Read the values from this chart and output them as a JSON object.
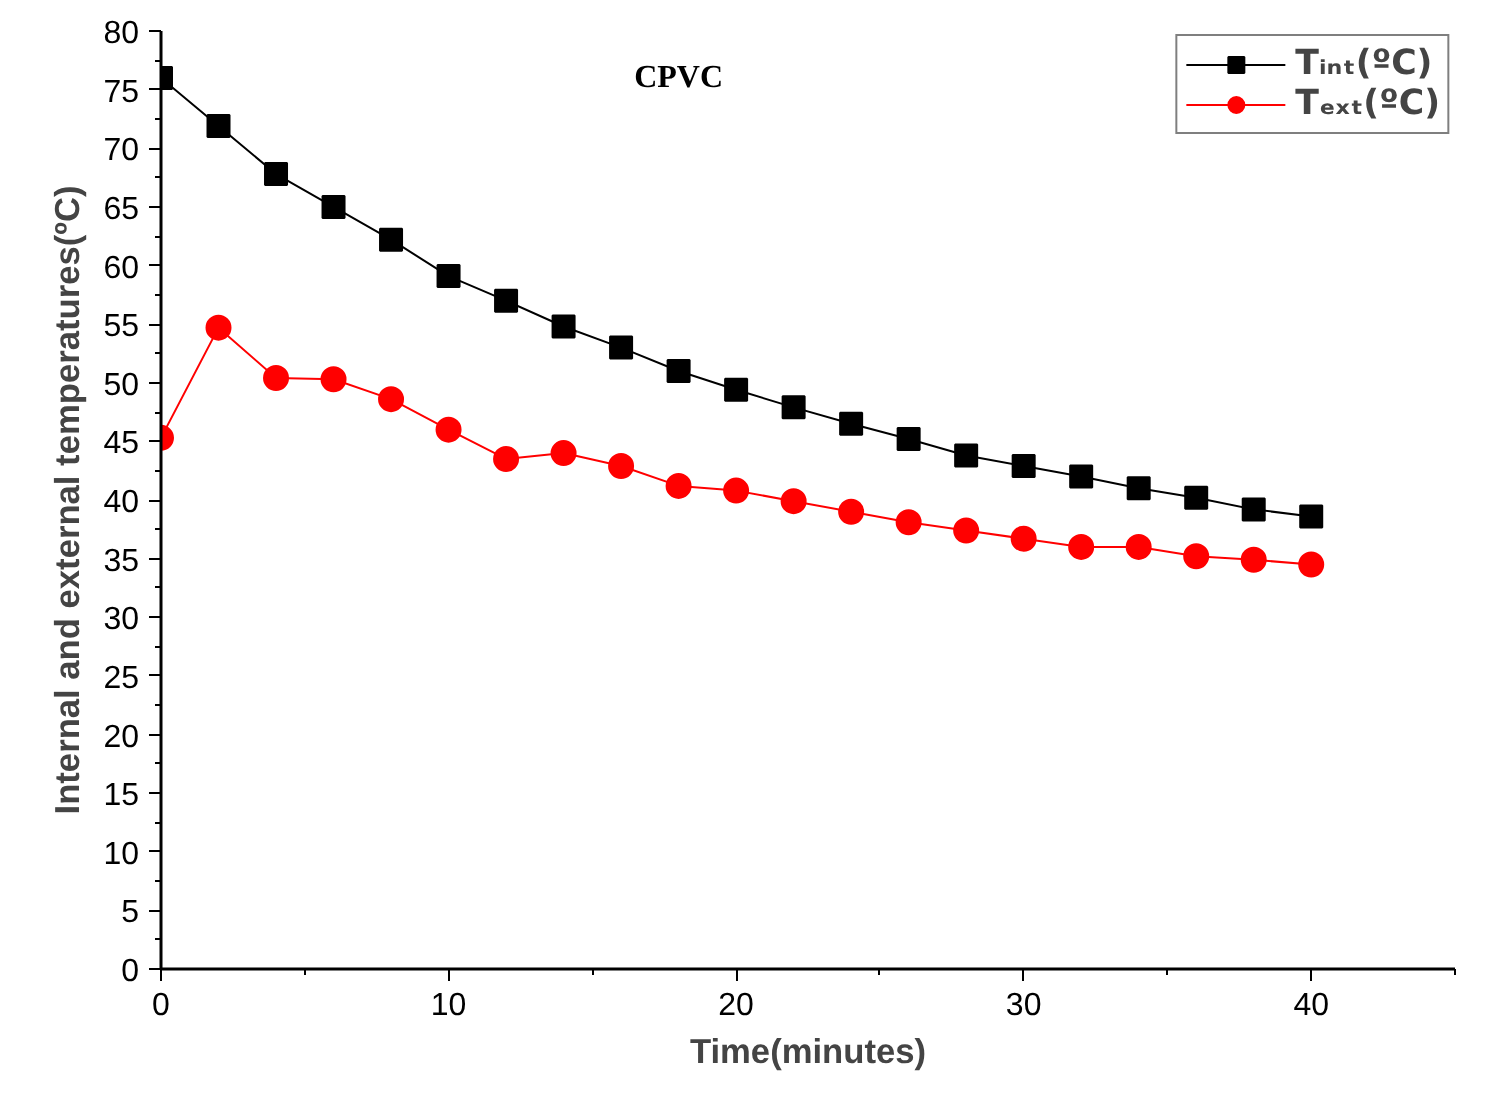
{
  "chart_data": {
    "type": "line",
    "title": "CPVC",
    "xlabel": "Time(minutes)",
    "ylabel": "Internal and external temperatures(ºC)",
    "x": [
      0,
      2,
      4,
      6,
      8,
      10,
      12,
      14,
      16,
      18,
      20,
      22,
      24,
      26,
      28,
      30,
      32,
      34,
      36,
      38,
      40
    ],
    "series": [
      {
        "name": "Tᵢₙₜ(ºC)",
        "color": "#000000",
        "marker": "square",
        "values": [
          76.0,
          71.9,
          67.8,
          65.0,
          62.2,
          59.1,
          57.0,
          54.8,
          53.0,
          51.0,
          49.4,
          47.9,
          46.5,
          45.2,
          43.8,
          42.9,
          42.0,
          41.0,
          40.2,
          39.2,
          38.6
        ]
      },
      {
        "name": "Tₑₓₜ(ºC)",
        "color": "#ff0000",
        "marker": "circle",
        "values": [
          45.3,
          54.7,
          50.4,
          50.3,
          48.6,
          46.0,
          43.5,
          44.0,
          42.9,
          41.2,
          40.8,
          39.9,
          39.0,
          38.1,
          37.4,
          36.7,
          36.0,
          36.0,
          35.2,
          34.9,
          34.5
        ]
      }
    ],
    "xlim": [
      0,
      45
    ],
    "xticks": [
      0,
      10,
      20,
      30,
      40
    ],
    "ylim": [
      0,
      80
    ],
    "yticks": [
      0,
      5,
      10,
      15,
      20,
      25,
      30,
      35,
      40,
      45,
      50,
      55,
      60,
      65,
      70,
      75,
      80
    ],
    "grid": false,
    "legend": "top right",
    "line_style": "solid"
  }
}
